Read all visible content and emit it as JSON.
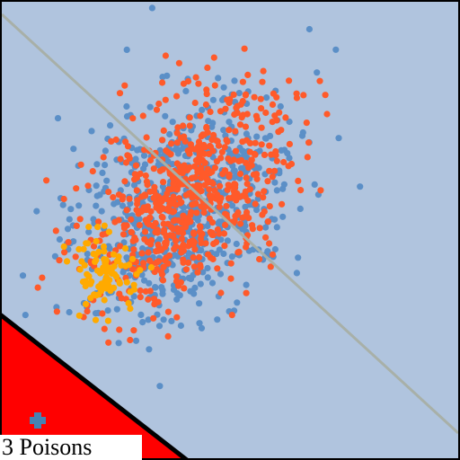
{
  "hud": {
    "label": "3 Poisons"
  },
  "colors": {
    "background": "#b0c4de",
    "red_points": "#ff5a2a",
    "blue_points": "#5b8fc7",
    "orange_points": "#ffaa00",
    "divider_line": "#a8b0a8",
    "danger_zone": "#ff0000",
    "danger_edge": "#000000",
    "player_marker": "#4682b4",
    "frame": "#000000"
  },
  "icons": {
    "player": "plus-icon"
  }
}
